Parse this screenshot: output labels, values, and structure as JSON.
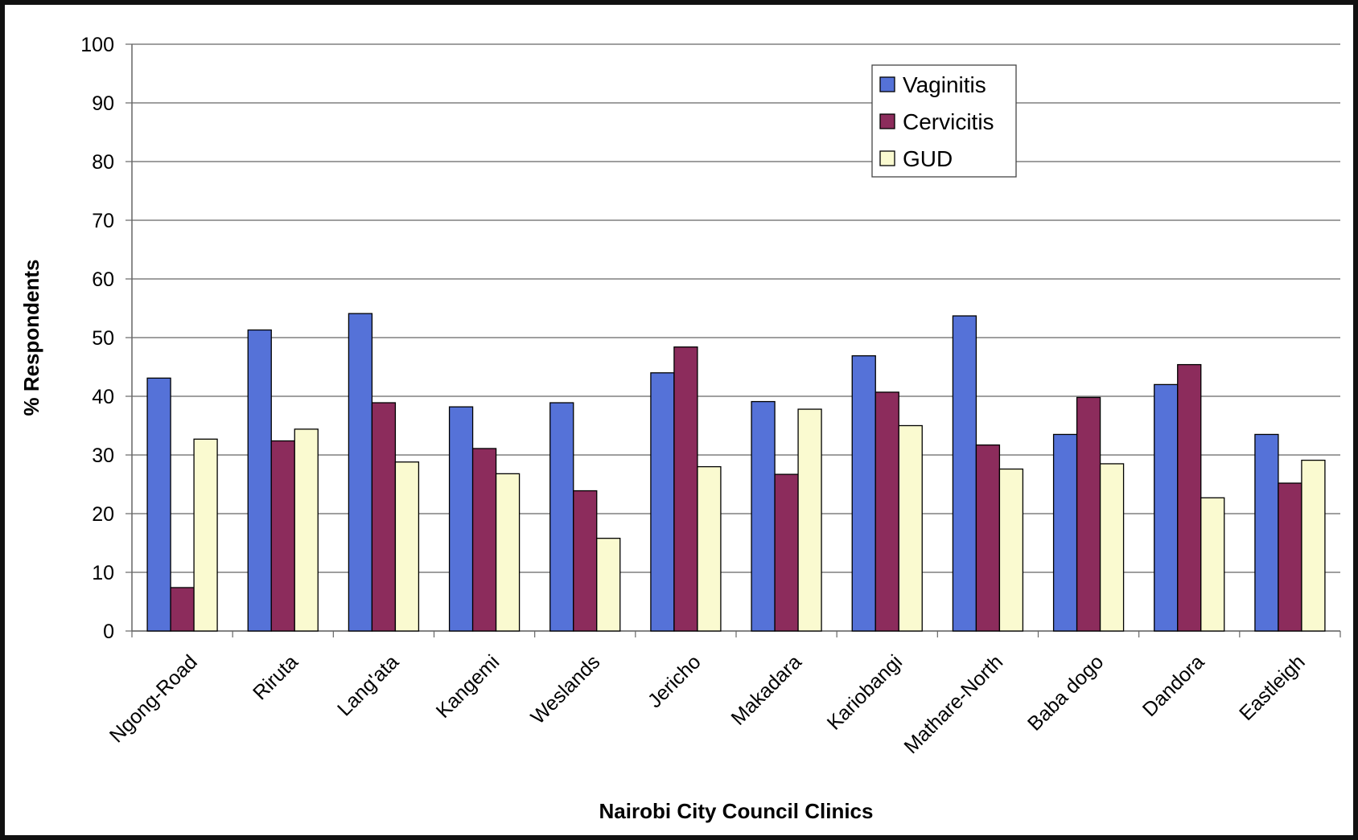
{
  "chart_data": {
    "type": "bar",
    "x_label": "Nairobi City Council Clinics",
    "y_label": "% Respondents",
    "categories": [
      "Ngong-Road",
      "Riruta",
      "Lang'ata",
      "Kangemi",
      "Weslands",
      "Jericho",
      "Makadara",
      "Kariobangi",
      "Mathare-North",
      "Baba dogo",
      "Dandora",
      "Eastleigh"
    ],
    "series": [
      {
        "name": "Vaginitis",
        "color": "#5572d8",
        "values": [
          43.1,
          51.3,
          54.1,
          38.2,
          38.9,
          44,
          39.1,
          46.9,
          53.7,
          33.5,
          42,
          33.5
        ]
      },
      {
        "name": "Cervicitis",
        "color": "#8c2c5c",
        "values": [
          7.4,
          32.4,
          38.9,
          31.1,
          23.9,
          48.4,
          26.7,
          40.7,
          31.7,
          39.8,
          45.4,
          25.2
        ]
      },
      {
        "name": "GUD",
        "color": "#fafad0",
        "values": [
          32.7,
          34.4,
          28.8,
          26.8,
          15.8,
          28,
          37.8,
          35,
          27.6,
          28.5,
          22.7,
          29.1
        ]
      }
    ],
    "ylim": [
      0,
      100
    ],
    "yticks": [
      0,
      10,
      20,
      30,
      40,
      50,
      60,
      70,
      80,
      90,
      100
    ],
    "grid": true
  }
}
